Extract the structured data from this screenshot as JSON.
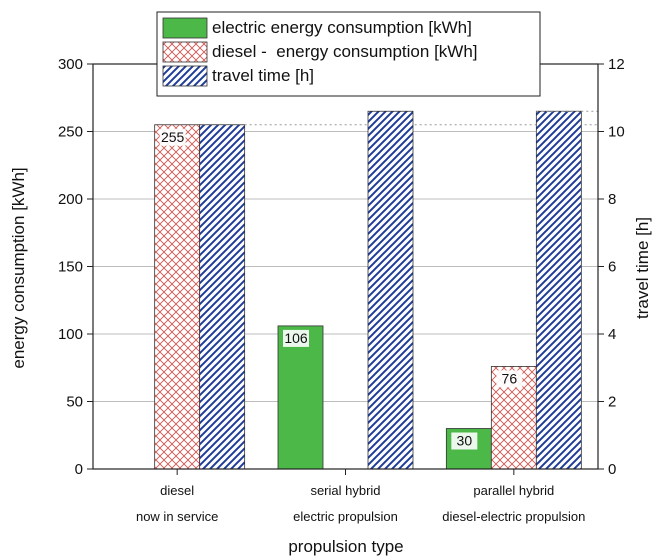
{
  "chart_data": {
    "type": "bar",
    "categories": [
      [
        "diesel",
        "now in service"
      ],
      [
        "serial hybrid",
        "electric propulsion"
      ],
      [
        "parallel hybrid",
        "diesel-electric propulsion"
      ]
    ],
    "xlabel": "propulsion type",
    "ylabel": "energy consumption [kWh]",
    "y2label": "travel time [h]",
    "ylim": [
      0,
      300
    ],
    "y2lim": [
      0,
      12
    ],
    "yticks": [
      "0",
      "50",
      "100",
      "150",
      "200",
      "250",
      "300"
    ],
    "y2ticks": [
      "0",
      "2",
      "4",
      "6",
      "8",
      "10",
      "12"
    ],
    "grid": true,
    "legend_position": "top",
    "series": [
      {
        "name": "electric energy consumption [kWh]",
        "axis": "left",
        "values": [
          null,
          106,
          30
        ],
        "labels": [
          "",
          "106",
          "30"
        ],
        "color": "#4cb848",
        "pattern": "solid"
      },
      {
        "name": "diesel -  energy consumption [kWh]",
        "axis": "left",
        "values": [
          255,
          null,
          76
        ],
        "labels": [
          "255",
          "",
          "76"
        ],
        "color": "#d9534f",
        "pattern": "crosshatch"
      },
      {
        "name": "travel time [h]",
        "axis": "right",
        "values": [
          10.2,
          10.6,
          10.6
        ],
        "labels": [
          "",
          "",
          ""
        ],
        "color": "#1f3c99",
        "pattern": "diagonal"
      }
    ]
  }
}
